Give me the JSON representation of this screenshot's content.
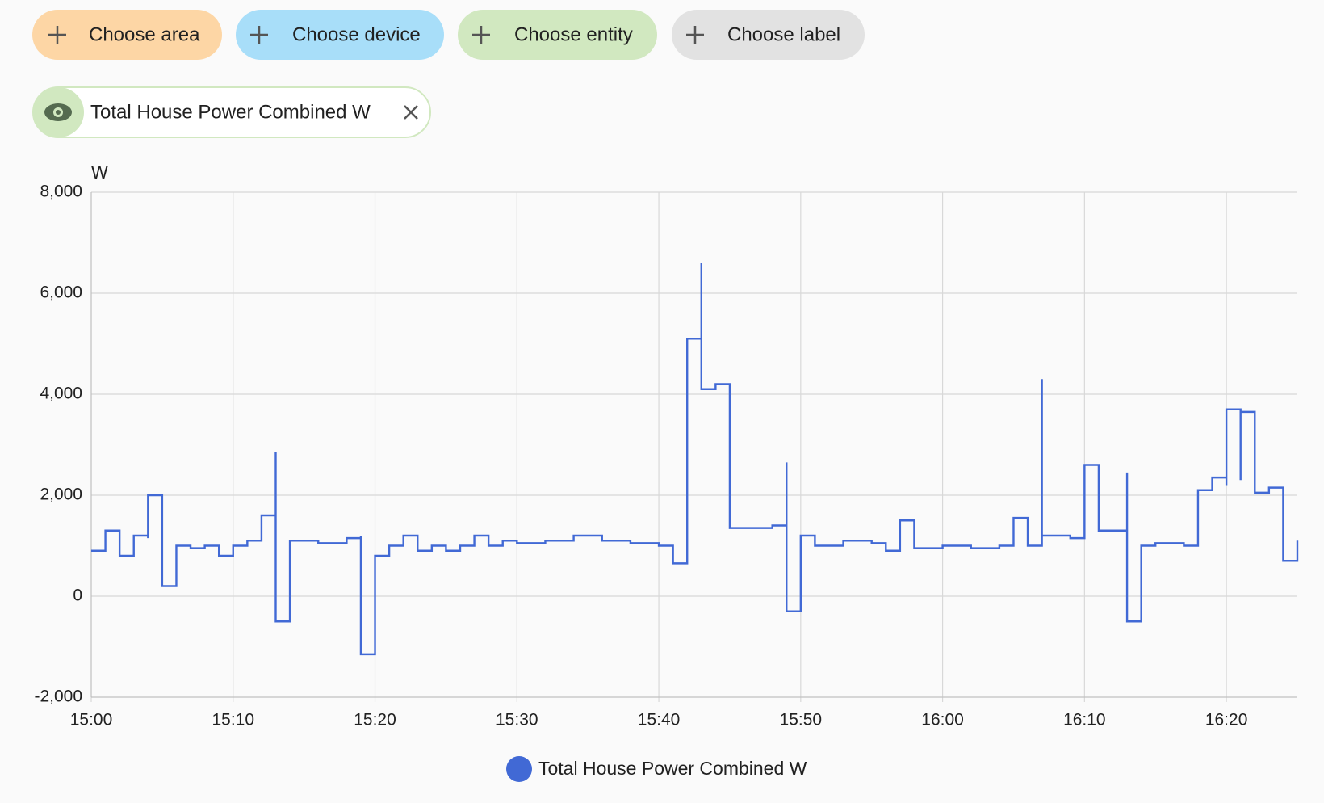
{
  "filters": [
    "Choose area",
    "Choose device",
    "Choose entity",
    "Choose label"
  ],
  "selected": "Total House Power Combined W",
  "chart_data": {
    "type": "line",
    "y_label": "W",
    "xlim": [
      "15:00",
      "16:25"
    ],
    "xticks": [
      "15:00",
      "15:10",
      "15:20",
      "15:30",
      "15:40",
      "15:50",
      "16:00",
      "16:10",
      "16:20"
    ],
    "ylim": [
      -2000,
      8000
    ],
    "yticks": [
      {
        "value": -2000,
        "label": "-2,000"
      },
      0,
      {
        "value": 2000,
        "label": "2,000"
      },
      {
        "value": 4000,
        "label": "4,000"
      },
      {
        "value": 6000,
        "label": "6,000"
      },
      {
        "value": 8000,
        "label": "8,000"
      }
    ],
    "grid": true,
    "step": true,
    "x": [
      "15:00",
      "15:01",
      "15:02",
      "15:03",
      "15:04",
      "15:04",
      "15:05",
      "15:05",
      "15:06",
      "15:07",
      "15:08",
      "15:09",
      "15:10",
      "15:11",
      "15:12",
      "15:13",
      "15:13",
      "15:13",
      "15:14",
      "15:16",
      "15:18",
      "15:19",
      "15:19",
      "15:20",
      "15:21",
      "15:22",
      "15:23",
      "15:24",
      "15:25",
      "15:26",
      "15:27",
      "15:28",
      "15:29",
      "15:30",
      "15:32",
      "15:34",
      "15:36",
      "15:38",
      "15:40",
      "15:41",
      "15:41",
      "15:42",
      "15:42",
      "15:43",
      "15:43",
      "15:44",
      "15:45",
      "15:48",
      "15:49",
      "15:49",
      "15:49",
      "15:50",
      "15:51",
      "15:53",
      "15:55",
      "15:56",
      "15:57",
      "15:58",
      "16:00",
      "16:02",
      "16:04",
      "16:05",
      "16:06",
      "16:07",
      "16:07",
      "16:07",
      "16:09",
      "16:10",
      "16:11",
      "16:13",
      "16:13",
      "16:13",
      "16:14",
      "16:15",
      "16:17",
      "16:18",
      "16:18",
      "16:19",
      "16:20",
      "16:20",
      "16:21",
      "16:21",
      "16:22",
      "16:23",
      "16:24",
      "16:24",
      "16:25"
    ],
    "series": [
      {
        "name": "Total House Power Combined W",
        "color": "#4169d5",
        "values": [
          900,
          1300,
          800,
          1200,
          1150,
          2000,
          1100,
          200,
          1000,
          950,
          1000,
          800,
          1000,
          1100,
          1600,
          900,
          2850,
          -500,
          1100,
          1050,
          1150,
          1200,
          -1150,
          800,
          1000,
          1200,
          900,
          1000,
          900,
          1000,
          1200,
          1000,
          1100,
          1050,
          1100,
          1200,
          1100,
          1050,
          1000,
          900,
          650,
          1150,
          5100,
          6600,
          4100,
          4200,
          1350,
          1400,
          1350,
          2650,
          -300,
          1200,
          1000,
          1100,
          1050,
          900,
          1500,
          950,
          1000,
          950,
          1000,
          1550,
          1000,
          2750,
          4300,
          1200,
          1150,
          2600,
          1300,
          1300,
          2450,
          -500,
          1000,
          1050,
          1000,
          1500,
          2100,
          2350,
          2200,
          3700,
          2300,
          3650,
          2050,
          2150,
          2100,
          700,
          1100
        ]
      }
    ],
    "legend": "bottom"
  }
}
